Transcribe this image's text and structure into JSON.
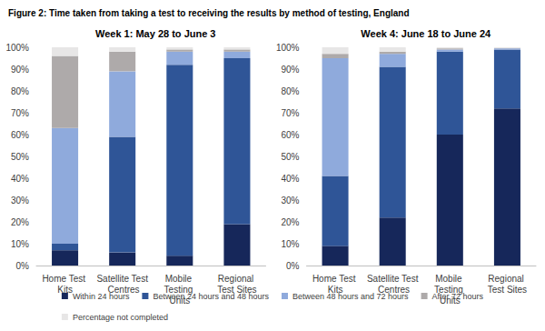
{
  "title": "Figure 2: Time taken from taking a test to receiving the results by method of testing, England",
  "chart_data": [
    {
      "type": "bar",
      "stacked": true,
      "grid": false,
      "legend": "bottom",
      "title": "Week 1: May 28 to June 3",
      "categories": [
        "Home Test Kits",
        "Satellite Test Centres",
        "Mobile Testing Units",
        "Regional Test Sites"
      ],
      "ylim": [
        0,
        100
      ],
      "yticks": [
        {
          "value": 0,
          "label": "0%"
        },
        {
          "value": 10,
          "label": "10%"
        },
        {
          "value": 20,
          "label": "20%"
        },
        {
          "value": 30,
          "label": "30%"
        },
        {
          "value": 40,
          "label": "40%"
        },
        {
          "value": 50,
          "label": "50%"
        },
        {
          "value": 60,
          "label": "60%"
        },
        {
          "value": 70,
          "label": "70%"
        },
        {
          "value": 80,
          "label": "80%"
        },
        {
          "value": 90,
          "label": "90%"
        },
        {
          "value": 100,
          "label": "100%"
        }
      ],
      "series": [
        {
          "name": "Within 24 hours",
          "color": "#16275a",
          "values": [
            7,
            6,
            4.5,
            19
          ]
        },
        {
          "name": "Between 24 hours and 48 hours",
          "color": "#2f5597",
          "values": [
            3,
            53,
            87.5,
            76
          ]
        },
        {
          "name": "Between 48 hours and 72 hours",
          "color": "#8faadc",
          "values": [
            53,
            30,
            6,
            3
          ]
        },
        {
          "name": "After 72 hours",
          "color": "#aeaaaa",
          "values": [
            33,
            9,
            1,
            1
          ]
        },
        {
          "name": "Percentage not completed",
          "color": "#e7e6e6",
          "values": [
            4,
            2,
            1,
            1
          ]
        }
      ]
    },
    {
      "type": "bar",
      "stacked": true,
      "grid": false,
      "legend": "bottom",
      "title": "Week 4: June 18 to June 24",
      "categories": [
        "Home Test Kits",
        "Satellite Test Centres",
        "Mobile Testing Units",
        "Regional Test Sites"
      ],
      "ylim": [
        0,
        100
      ],
      "yticks": [
        {
          "value": 0,
          "label": "0%"
        },
        {
          "value": 10,
          "label": "10%"
        },
        {
          "value": 20,
          "label": "20%"
        },
        {
          "value": 30,
          "label": "30%"
        },
        {
          "value": 40,
          "label": "40%"
        },
        {
          "value": 50,
          "label": "50%"
        },
        {
          "value": 60,
          "label": "60%"
        },
        {
          "value": 70,
          "label": "70%"
        },
        {
          "value": 80,
          "label": "80%"
        },
        {
          "value": 90,
          "label": "90%"
        },
        {
          "value": 100,
          "label": "100%"
        }
      ],
      "series": [
        {
          "name": "Within 24 hours",
          "color": "#16275a",
          "values": [
            9,
            22,
            60,
            72
          ]
        },
        {
          "name": "Between 24 hours and 48 hours",
          "color": "#2f5597",
          "values": [
            32,
            69,
            38,
            27
          ]
        },
        {
          "name": "Between 48 hours and 72 hours",
          "color": "#8faadc",
          "values": [
            54,
            6,
            1,
            0.5
          ]
        },
        {
          "name": "After 72 hours",
          "color": "#aeaaaa",
          "values": [
            2,
            1,
            0.5,
            0.2
          ]
        },
        {
          "name": "Percentage not completed",
          "color": "#e7e6e6",
          "values": [
            3,
            2,
            0.5,
            0.3
          ]
        }
      ]
    }
  ]
}
